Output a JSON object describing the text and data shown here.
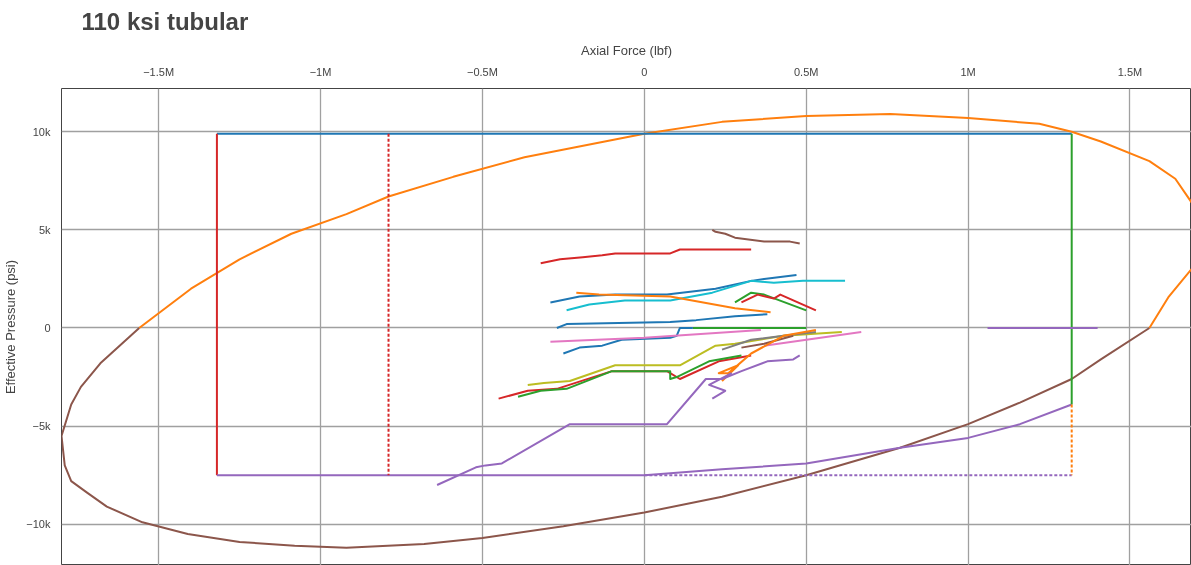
{
  "chart_data": {
    "type": "line",
    "title": "110 ksi tubular",
    "xlabel": "Axial Force (lbf)",
    "ylabel": "Effective Pressure (psi)",
    "xlim": [
      -1800000,
      1690000
    ],
    "ylim": [
      -12100,
      12200
    ],
    "xticks": [
      {
        "value": -1500000,
        "label": "−1.5M"
      },
      {
        "value": -1000000,
        "label": "−1M"
      },
      {
        "value": -500000,
        "label": "−0.5M"
      },
      0,
      {
        "value": 500000,
        "label": "0.5M"
      },
      {
        "value": 1000000,
        "label": "1M"
      },
      {
        "value": 1500000,
        "label": "1.5M"
      }
    ],
    "yticks": [
      {
        "value": -10000,
        "label": "−10k"
      },
      {
        "value": -5000,
        "label": "−5k"
      },
      0,
      {
        "value": 5000,
        "label": "5k"
      },
      {
        "value": 10000,
        "label": "10k"
      }
    ],
    "grid": true,
    "marker": "none",
    "line_style": "solid",
    "series": [
      {
        "color": "#ff7f0e",
        "x": [
          -1560000,
          -1400000,
          -1250000,
          -1090000,
          -920000,
          -790000,
          -590000,
          -370000,
          0,
          240000,
          500000,
          760000,
          1000000,
          1220000,
          1320000,
          1410000,
          1560000,
          1640000,
          1690000,
          null,
          1690000,
          1620000,
          1560000
        ],
        "values": [
          0,
          2000,
          3500,
          4800,
          5800,
          6700,
          7700,
          8700,
          9900,
          10500,
          10800,
          10900,
          10700,
          10400,
          10000,
          9500,
          8500,
          7600,
          6400,
          null,
          3000,
          1600,
          0
        ]
      },
      {
        "color": "#8c564b",
        "x": [
          1560000,
          1410000,
          1320000,
          1160000,
          1000000,
          790000,
          500000,
          240000,
          0,
          -250000,
          -500000,
          -680000,
          -920000,
          -1080000,
          -1250000,
          -1410000,
          -1550000,
          -1660000,
          -1720000,
          -1770000,
          -1790000,
          -1800000,
          -1770000,
          -1740000,
          -1680000,
          -1560000
        ],
        "values": [
          0,
          -1600,
          -2600,
          -3800,
          -4900,
          -6100,
          -7500,
          -8600,
          -9400,
          -10100,
          -10700,
          -11000,
          -11200,
          -11100,
          -10900,
          -10500,
          -9900,
          -9100,
          -8400,
          -7800,
          -7000,
          -5500,
          -3900,
          -3000,
          -1800,
          0
        ]
      },
      {
        "color": "#1f77b4",
        "x": [
          -1320000,
          1320000
        ],
        "values": [
          9900,
          9900
        ]
      },
      {
        "color": "#d62728",
        "x": [
          -1320000,
          -1320000
        ],
        "values": [
          9900,
          -7500
        ]
      },
      {
        "color": "#d62728",
        "line_style": "dotted",
        "x": [
          -790000,
          -790000
        ],
        "values": [
          9900,
          -7500
        ]
      },
      {
        "color": "#9467bd",
        "x": [
          -1320000,
          0,
          240000,
          500000,
          790000,
          1000000,
          1160000,
          1320000
        ],
        "values": [
          -7500,
          -7500,
          -7200,
          -6900,
          -6100,
          -5600,
          -4900,
          -3900
        ]
      },
      {
        "color": "#9467bd",
        "line_style": "dotted",
        "x": [
          0,
          1320000
        ],
        "values": [
          -7500,
          -7500
        ]
      },
      {
        "color": "#2ca02c",
        "x": [
          1320000,
          1320000
        ],
        "values": [
          9900,
          -3900
        ]
      },
      {
        "color": "#ff7f0e",
        "line_style": "dotted",
        "x": [
          1320000,
          1320000
        ],
        "values": [
          -3900,
          -7500
        ]
      },
      {
        "color": "#9467bd",
        "x": [
          1060000,
          1400000
        ],
        "values": [
          0,
          0
        ]
      },
      {
        "color": "#8c564b",
        "x": [
          210000,
          220000,
          250000,
          280000,
          370000,
          450000,
          480000
        ],
        "values": [
          5000,
          4900,
          4800,
          4600,
          4400,
          4400,
          4300
        ]
      },
      {
        "color": "#d62728",
        "x": [
          -320000,
          -260000,
          -190000,
          -130000,
          -90000,
          80000,
          110000,
          330000
        ],
        "values": [
          3300,
          3500,
          3600,
          3700,
          3800,
          3800,
          4000,
          4000
        ]
      },
      {
        "color": "#1f77b4",
        "x": [
          -290000,
          -200000,
          -90000,
          70000,
          220000,
          330000,
          370000,
          470000
        ],
        "values": [
          1300,
          1600,
          1700,
          1700,
          2000,
          2400,
          2500,
          2700
        ]
      },
      {
        "color": "#17becf",
        "x": [
          -240000,
          -170000,
          -60000,
          80000,
          210000,
          330000,
          400000,
          490000,
          620000
        ],
        "values": [
          900,
          1200,
          1400,
          1400,
          1800,
          2400,
          2300,
          2400,
          2400
        ]
      },
      {
        "color": "#ff7f0e",
        "x": [
          -210000,
          -140000,
          80000,
          280000,
          390000
        ],
        "values": [
          1800,
          1700,
          1600,
          1000,
          800
        ]
      },
      {
        "color": "#2ca02c",
        "x": [
          280000,
          330000,
          370000,
          500000
        ],
        "values": [
          1300,
          1800,
          1700,
          900
        ]
      },
      {
        "color": "#d62728",
        "x": [
          300000,
          350000,
          400000,
          420000,
          530000
        ],
        "values": [
          1300,
          1700,
          1500,
          1700,
          900
        ]
      },
      {
        "color": "#1f77b4",
        "x": [
          -270000,
          -240000,
          80000,
          160000,
          280000,
          380000
        ],
        "values": [
          0,
          200,
          300,
          400,
          600,
          700
        ]
      },
      {
        "color": "#2ca02c",
        "x": [
          150000,
          500000
        ],
        "values": [
          0,
          0
        ]
      },
      {
        "color": "#1f77b4",
        "x": [
          -250000,
          -200000,
          -130000,
          -70000,
          80000,
          100000,
          110000,
          150000
        ],
        "values": [
          -1300,
          -1000,
          -900,
          -600,
          -500,
          -400,
          0,
          0
        ]
      },
      {
        "color": "#e377c2",
        "x": [
          -290000,
          0,
          360000
        ],
        "values": [
          -700,
          -500,
          -100
        ]
      },
      {
        "color": "#e377c2",
        "x": [
          370000,
          670000
        ],
        "values": [
          -900,
          -200
        ]
      },
      {
        "color": "#bcbd22",
        "x": [
          -360000,
          -310000,
          -230000,
          -90000,
          110000,
          220000,
          280000,
          430000,
          610000
        ],
        "values": [
          -2900,
          -2800,
          -2700,
          -1900,
          -1900,
          -900,
          -800,
          -400,
          -200
        ]
      },
      {
        "color": "#d62728",
        "x": [
          -450000,
          -360000,
          -270000,
          -100000,
          70000,
          110000,
          230000,
          330000
        ],
        "values": [
          -3600,
          -3200,
          -3100,
          -2200,
          -2200,
          -2600,
          -1700,
          -1400
        ]
      },
      {
        "color": "#2ca02c",
        "x": [
          -390000,
          -320000,
          -240000,
          -100000,
          80000,
          80000,
          100000,
          200000,
          300000
        ],
        "values": [
          -3500,
          -3200,
          -3100,
          -2200,
          -2200,
          -2600,
          -2500,
          -1700,
          -1400
        ]
      },
      {
        "color": "#7f7f7f",
        "x": [
          240000,
          330000,
          430000,
          530000
        ],
        "values": [
          -1100,
          -600,
          -400,
          -200
        ]
      },
      {
        "color": "#8c564b",
        "x": [
          300000,
          370000,
          460000
        ],
        "values": [
          -1000,
          -800,
          -400
        ]
      },
      {
        "color": "#ff7f0e",
        "x": [
          240000,
          290000,
          230000,
          260000,
          330000,
          430000,
          530000
        ],
        "values": [
          -2700,
          -1900,
          -2300,
          -2300,
          -1300,
          -400,
          -100
        ]
      },
      {
        "color": "#9467bd",
        "x": [
          -640000,
          -520000,
          -490000,
          -440000,
          -230000,
          70000,
          190000,
          240000,
          300000,
          380000,
          460000,
          480000
        ],
        "values": [
          -8000,
          -7100,
          -7000,
          -6900,
          -4900,
          -4900,
          -2600,
          -2600,
          -2200,
          -1700,
          -1600,
          -1400
        ]
      },
      {
        "color": "#9467bd",
        "x": [
          210000,
          250000,
          200000,
          270000
        ],
        "values": [
          -3600,
          -3200,
          -2900,
          -2300
        ]
      }
    ]
  }
}
